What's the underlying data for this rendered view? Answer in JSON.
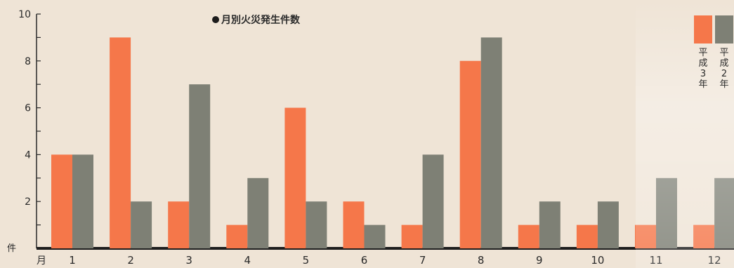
{
  "chart_data": {
    "type": "bar",
    "title": "月別火災発生件数",
    "categories": [
      "1",
      "2",
      "3",
      "4",
      "5",
      "6",
      "7",
      "8",
      "9",
      "10",
      "11",
      "12"
    ],
    "series": [
      {
        "name": "平成3年",
        "color": "#f5774a",
        "values": [
          4,
          9,
          2,
          1,
          6,
          2,
          1,
          8,
          1,
          1,
          1,
          1
        ]
      },
      {
        "name": "平成2年",
        "color": "#7e8075",
        "values": [
          4,
          2,
          7,
          3,
          2,
          1,
          4,
          9,
          2,
          2,
          3,
          3
        ]
      }
    ],
    "yticks": [
      "2",
      "4",
      "6",
      "8",
      "10"
    ],
    "ylabel": "件",
    "xlabel": "月",
    "ylim": [
      0,
      10
    ]
  }
}
